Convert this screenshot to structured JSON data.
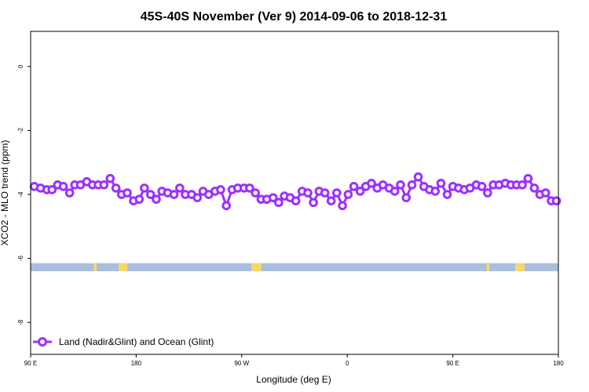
{
  "chart_data": {
    "type": "line",
    "title": "45S-40S November (Ver 9)   2014-09-06 to 2018-12-31",
    "xlabel": "Longitude (deg E)",
    "ylabel": "XCO2 - MLO trend (ppm)",
    "xlim": [
      90,
      450
    ],
    "ylim": [
      -9,
      1.1
    ],
    "x_ticks": [
      {
        "value": 90,
        "label": "90 E"
      },
      {
        "value": 162,
        "label": "180"
      },
      {
        "value": 234,
        "label": "90 W"
      },
      {
        "value": 306,
        "label": "0"
      },
      {
        "value": 378,
        "label": "90 E"
      },
      {
        "value": 450,
        "label": "180"
      }
    ],
    "y_ticks": [
      {
        "value": 0,
        "label": "0"
      },
      {
        "value": -2,
        "label": "-2"
      },
      {
        "value": -4,
        "label": "-4"
      },
      {
        "value": -6,
        "label": "-6"
      },
      {
        "value": -8,
        "label": "-8"
      }
    ],
    "legend": {
      "position": "bottom-left",
      "entries": [
        "Land (Nadir&Glint) and Ocean (Glint)"
      ]
    },
    "series": [
      {
        "name": "Land (Nadir&Glint) and Ocean (Glint)",
        "color": "#9b30ff",
        "x": [
          92.5,
          96.8,
          101.1,
          104.6,
          108.4,
          112.3,
          116.6,
          120.1,
          124.0,
          128.3,
          132.2,
          136.1,
          140.0,
          144.3,
          148.2,
          152.0,
          155.9,
          160.2,
          164.1,
          167.6,
          171.8,
          175.7,
          179.6,
          183.5,
          187.8,
          191.7,
          195.5,
          199.8,
          203.7,
          207.6,
          211.5,
          215.8,
          219.6,
          223.5,
          227.4,
          231.3,
          235.6,
          239.4,
          243.3,
          247.2,
          251.1,
          255.4,
          259.2,
          263.1,
          267.0,
          270.9,
          275.2,
          279.1,
          282.9,
          286.8,
          290.7,
          295.0,
          298.8,
          302.7,
          306.6,
          310.5,
          314.8,
          318.6,
          322.5,
          326.4,
          330.3,
          334.6,
          338.4,
          342.3,
          346.2,
          350.1,
          354.4,
          358.3,
          362.1,
          366.0,
          369.9,
          374.2,
          378.0,
          381.9,
          385.8,
          389.7,
          394.0,
          397.8,
          401.7,
          405.6,
          409.5,
          413.8,
          417.6,
          421.5,
          425.4,
          429.3,
          433.6,
          437.4,
          441.3,
          445.2,
          448.7
        ],
        "y": [
          -3.75,
          -3.8,
          -3.85,
          -3.85,
          -3.7,
          -3.75,
          -3.95,
          -3.7,
          -3.7,
          -3.6,
          -3.7,
          -3.7,
          -3.7,
          -3.5,
          -3.8,
          -4.0,
          -3.95,
          -4.2,
          -4.15,
          -3.8,
          -4.0,
          -4.15,
          -3.9,
          -3.95,
          -4.0,
          -3.8,
          -4.0,
          -4.0,
          -4.1,
          -3.9,
          -4.0,
          -3.9,
          -3.85,
          -4.35,
          -3.85,
          -3.8,
          -3.8,
          -3.8,
          -3.95,
          -4.15,
          -4.15,
          -4.1,
          -4.25,
          -4.05,
          -4.1,
          -4.2,
          -3.9,
          -3.95,
          -4.25,
          -3.9,
          -3.95,
          -4.2,
          -3.95,
          -4.35,
          -4.0,
          -3.75,
          -3.9,
          -3.75,
          -3.65,
          -3.8,
          -3.7,
          -3.8,
          -3.9,
          -3.7,
          -4.1,
          -3.7,
          -3.45,
          -3.75,
          -3.85,
          -3.9,
          -3.65,
          -4.0,
          -3.75,
          -3.8,
          -3.85,
          -3.8,
          -3.7,
          -3.75,
          -3.95,
          -3.7,
          -3.7,
          -3.65,
          -3.7,
          -3.7,
          -3.7,
          -3.5,
          -3.8,
          -4.0,
          -3.95,
          -4.2,
          -4.2
        ]
      }
    ],
    "surface_band": {
      "y_range": [
        -6.4,
        -6.15
      ],
      "ocean_color": "#a7bedd",
      "land_color": "#f7d86a",
      "land_spans": [
        [
          133,
          135
        ],
        [
          150,
          154
        ],
        [
          154,
          156
        ],
        [
          240.5,
          247.5
        ],
        [
          401,
          403
        ],
        [
          420.5,
          424.5
        ],
        [
          424.5,
          427
        ]
      ]
    }
  }
}
